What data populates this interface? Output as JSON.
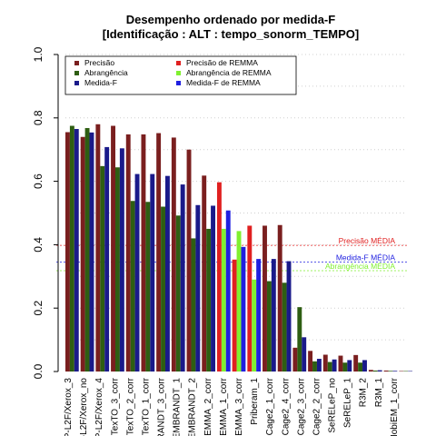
{
  "chart_data": {
    "type": "bar",
    "title_lines": [
      "Desempenho ordenado por medida-F",
      "[Identificação : ALT : tempo_sonorm_TEMPO]"
    ],
    "ylim": [
      0,
      1
    ],
    "y_ticks": [
      "0.0",
      "0.2",
      "0.4",
      "0.6",
      "0.8",
      "1.0"
    ],
    "grid": "horizontal dotted",
    "legend_placement": "top",
    "categories": [
      "P-L2F/Xerox_3",
      "P-L2F/Xerox_1",
      "P-L2F/Xerox_no",
      "P-L2F/Xerox_4",
      "TexTO_3_corr",
      "TexTO_2_corr",
      "TexTO_1_corr",
      "IBRANDT_3_corr",
      "EMBRANDT_1",
      "EMBRANDT_2",
      "REMMA_2_corr",
      "EMMA_1_corr",
      "REMMA_3_corr",
      "Priberam_1",
      "Cage2_1_corr",
      "Cage2_4_corr",
      "Cage2_3_corr",
      "Cage2_2_corr",
      "SeRELeP_no",
      "SeRELeP_1",
      "R3M_2",
      "R3M_1",
      "IobiEM_1_corr"
    ],
    "visible_category_labels": [
      "P-L2F/Xerox_3",
      "P-L2F/Xerox_no",
      "P-L2F/Xerox_4",
      "TexTO_3_corr",
      "TexTO_2_corr",
      "TexTO_1_corr",
      "IBRANDT_3_corr",
      "EMBRANDT_1",
      "EMBRANDT_2",
      "REMMA_2_corr",
      "EMMA_1_corr",
      "REMMA_3_corr",
      "Priberam_1",
      "Cage2_1_corr",
      "Cage2_4_corr",
      "Cage2_3_corr",
      "Cage2_2_corr",
      "SeRELeP_no",
      "SeRELeP_1",
      "R3M_2",
      "R3M_1",
      "IobiEM_1_corr"
    ],
    "remma_indices": [
      10,
      11,
      12
    ],
    "series": [
      {
        "name": "Precisão",
        "role": "precision",
        "color": "#7a1f1f",
        "remma_color": "#e02020",
        "values": [
          0.755,
          0.74,
          0.78,
          0.775,
          0.748,
          0.748,
          0.752,
          0.738,
          0.7,
          0.618,
          0.597,
          0.353,
          0.46,
          0.46,
          0.462,
          0.075,
          0.065,
          0.053,
          0.05,
          0.052,
          0.005,
          0.003,
          0.001
        ]
      },
      {
        "name": "Abrangência",
        "role": "recall",
        "color": "#2e5e12",
        "remma_color": "#80f030",
        "values": [
          0.775,
          0.768,
          0.648,
          0.644,
          0.538,
          0.535,
          0.52,
          0.492,
          0.42,
          0.45,
          0.45,
          0.443,
          0.29,
          0.285,
          0.28,
          0.203,
          0.032,
          0.03,
          0.028,
          0.028,
          0.003,
          0.002,
          0.001
        ]
      },
      {
        "name": "Medida-F",
        "role": "fmeasure",
        "color": "#1a1a8a",
        "remma_color": "#2020e0",
        "values": [
          0.765,
          0.754,
          0.708,
          0.704,
          0.623,
          0.623,
          0.617,
          0.59,
          0.525,
          0.523,
          0.508,
          0.393,
          0.355,
          0.355,
          0.348,
          0.108,
          0.04,
          0.038,
          0.036,
          0.036,
          0.004,
          0.002,
          0.001
        ]
      }
    ],
    "legend": [
      {
        "label": "Precisão",
        "color": "#7a1f1f"
      },
      {
        "label": "Abrangência",
        "color": "#2e5e12"
      },
      {
        "label": "Medida-F",
        "color": "#1a1a8a"
      },
      {
        "label": "Precisão  de  REMMA",
        "color": "#e02020"
      },
      {
        "label": "Abrangência  de  REMMA",
        "color": "#80f030"
      },
      {
        "label": "Medida-F  de  REMMA",
        "color": "#2020e0"
      }
    ],
    "reference_lines": [
      {
        "label": "Precisão MÉDIA",
        "value": 0.398,
        "color": "#e02020"
      },
      {
        "label": "Medida-F MÉDIA",
        "value": 0.345,
        "color": "#2020e0"
      },
      {
        "label": "Abrangência MÉDIA",
        "value": 0.318,
        "color": "#80f030"
      }
    ]
  }
}
